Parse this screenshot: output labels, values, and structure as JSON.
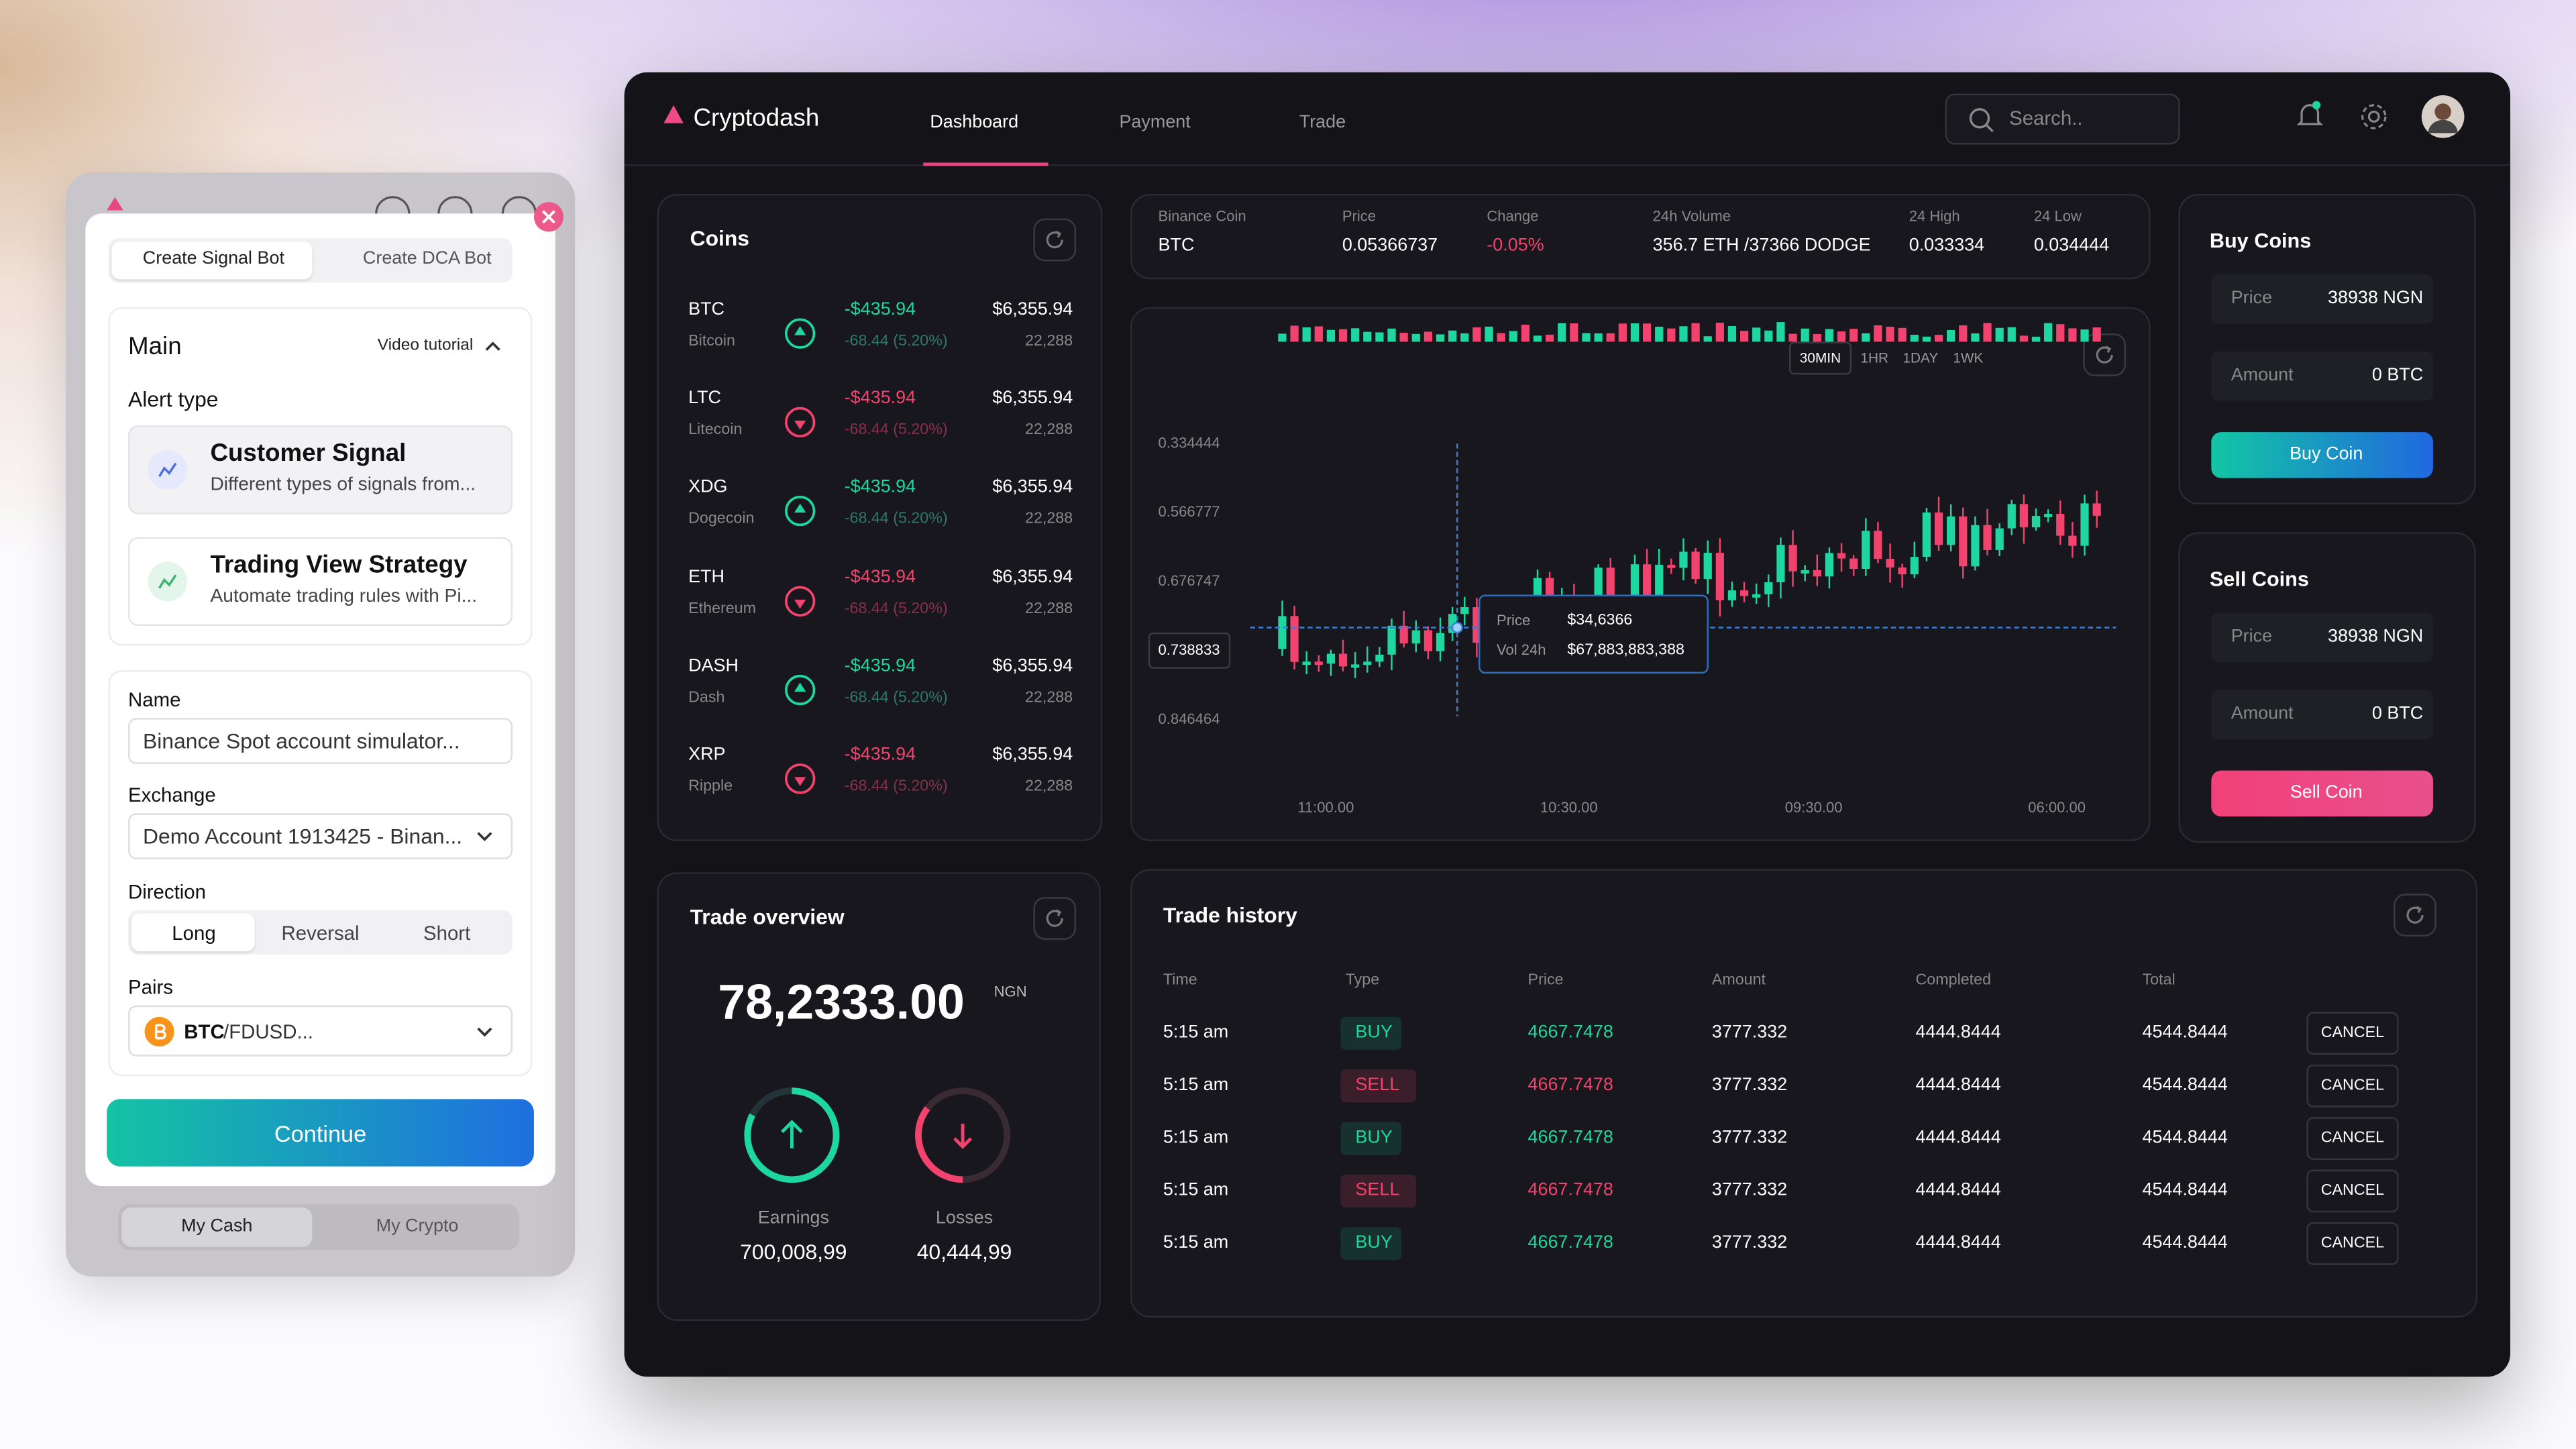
{
  "signal_panel": {
    "tabs": [
      "Create Signal Bot",
      "Create DCA Bot"
    ],
    "section": "Main",
    "video_link": "Video tutorial",
    "alert_label": "Alert type",
    "alerts": [
      {
        "title": "Customer Signal",
        "desc": "Different types of signals from..."
      },
      {
        "title": "Trading View Strategy",
        "desc": "Automate trading rules with Pi..."
      }
    ],
    "name_label": "Name",
    "name_value": "Binance Spot account simulator...",
    "exchange_label": "Exchange",
    "exchange_value": "Demo Account 1913425 - Binan...",
    "direction_label": "Direction",
    "directions": [
      "Long",
      "Reversal",
      "Short"
    ],
    "pairs_label": "Pairs",
    "pair_base": "BTC",
    "pair_quote": "/FDUSD...",
    "continue": "Continue",
    "bottom_tabs": [
      "My Cash",
      "My Crypto"
    ]
  },
  "header": {
    "brand": "Cryptodash",
    "nav": [
      "Dashboard",
      "Payment",
      "Trade"
    ],
    "search": "Search.."
  },
  "coins": {
    "title": "Coins",
    "rows": [
      {
        "symbol": "BTC",
        "name": "Bitcoin",
        "change": "-$435.94",
        "pct": "-68.44 (5.20%)",
        "price": "$6,355.94",
        "volume": "22,288",
        "color": "#1ed6a0"
      },
      {
        "symbol": "LTC",
        "name": "Litecoin",
        "change": "-$435.94",
        "pct": "-68.44 (5.20%)",
        "price": "$6,355.94",
        "volume": "22,288",
        "color": "#f2426e"
      },
      {
        "symbol": "XDG",
        "name": "Dogecoin",
        "change": "-$435.94",
        "pct": "-68.44 (5.20%)",
        "price": "$6,355.94",
        "volume": "22,288",
        "color": "#1ed6a0"
      },
      {
        "symbol": "ETH",
        "name": "Ethereum",
        "change": "-$435.94",
        "pct": "-68.44 (5.20%)",
        "price": "$6,355.94",
        "volume": "22,288",
        "color": "#f2426e"
      },
      {
        "symbol": "DASH",
        "name": "Dash",
        "change": "-$435.94",
        "pct": "-68.44 (5.20%)",
        "price": "$6,355.94",
        "volume": "22,288",
        "color": "#1ed6a0"
      },
      {
        "symbol": "XRP",
        "name": "Ripple",
        "change": "-$435.94",
        "pct": "-68.44 (5.20%)",
        "price": "$6,355.94",
        "volume": "22,288",
        "color": "#f2426e"
      }
    ]
  },
  "ticker": {
    "items": [
      {
        "label": "Binance Coin",
        "value": "BTC"
      },
      {
        "label": "Price",
        "value": "0.05366737"
      },
      {
        "label": "Change",
        "value": "-0.05%"
      },
      {
        "label": "24h Volume",
        "value": "356.7 ETH /37366 DODGE"
      },
      {
        "label": "24 High",
        "value": "0.033334"
      },
      {
        "label": "24 Low",
        "value": "0.034444"
      }
    ]
  },
  "chart": {
    "ranges": [
      "30MIN",
      "1HR",
      "1DAY",
      "1WK"
    ],
    "y_labels": [
      "0.334444",
      "0.566777",
      "0.676747",
      "0.738833",
      "0.846464"
    ],
    "x_labels": [
      "11:00.00",
      "10:30.00",
      "09:30.00",
      "06:00.00"
    ],
    "tooltip": {
      "price_label": "Price",
      "price": "$34,6366",
      "vol_label": "Vol 24h",
      "vol": "$67,883,883,388"
    }
  },
  "buy": {
    "title": "Buy Coins",
    "price_label": "Price",
    "price": "38938 NGN",
    "amount_label": "Amount",
    "amount": "0 BTC",
    "button": "Buy Coin"
  },
  "sell": {
    "title": "Sell Coins",
    "price_label": "Price",
    "price": "38938 NGN",
    "amount_label": "Amount",
    "amount": "0 BTC",
    "button": "Sell Coin"
  },
  "overview": {
    "title": "Trade overview",
    "total": "78,2333.00",
    "currency": "NGN",
    "earnings_label": "Earnings",
    "earnings": "700,008,99",
    "losses_label": "Losses",
    "losses": "40,444,99"
  },
  "history": {
    "title": "Trade history",
    "columns": [
      "Time",
      "Type",
      "Price",
      "Amount",
      "Completed",
      "Total"
    ],
    "action": "CANCEL",
    "rows": [
      {
        "time": "5:15 am",
        "type": "BUY",
        "price": "4667.7478",
        "amount": "3777.332",
        "completed": "4444.8444",
        "total": "4544.8444",
        "color": "#1ed6a0"
      },
      {
        "time": "5:15 am",
        "type": "SELL",
        "price": "4667.7478",
        "amount": "3777.332",
        "completed": "4444.8444",
        "total": "4544.8444",
        "color": "#f2426e"
      },
      {
        "time": "5:15 am",
        "type": "BUY",
        "price": "4667.7478",
        "amount": "3777.332",
        "completed": "4444.8444",
        "total": "4544.8444",
        "color": "#1ed6a0"
      },
      {
        "time": "5:15 am",
        "type": "SELL",
        "price": "4667.7478",
        "amount": "3777.332",
        "completed": "4444.8444",
        "total": "4544.8444",
        "color": "#f2426e"
      },
      {
        "time": "5:15 am",
        "type": "BUY",
        "price": "4667.7478",
        "amount": "3777.332",
        "completed": "4444.8444",
        "total": "4544.8444",
        "color": "#1ed6a0"
      }
    ]
  }
}
